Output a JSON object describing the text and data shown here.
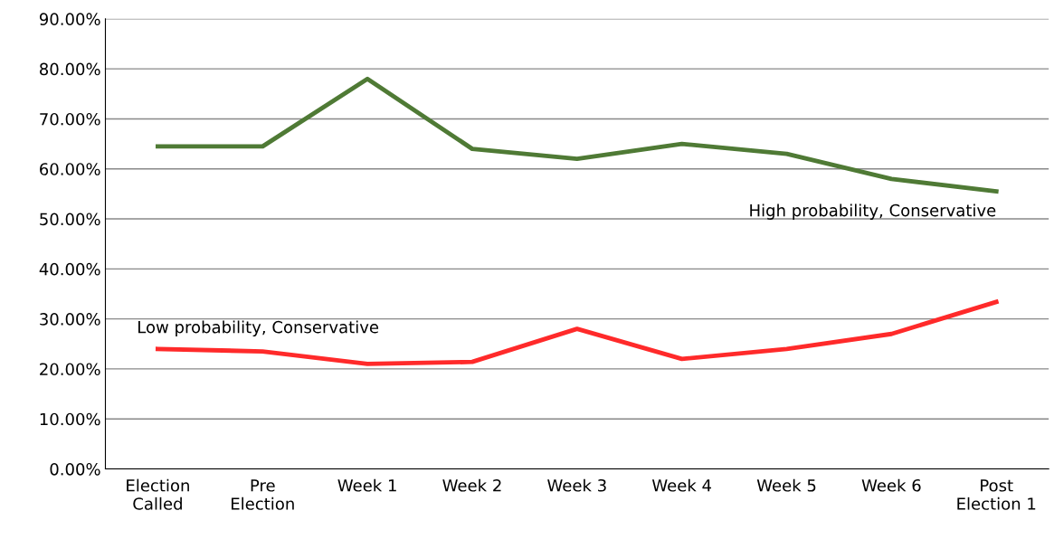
{
  "chart_data": {
    "type": "line",
    "categories": [
      "Election\nCalled",
      "Pre\nElection",
      "Week 1",
      "Week 2",
      "Week 3",
      "Week 4",
      "Week 5",
      "Week 6",
      "Post\nElection 1"
    ],
    "series": [
      {
        "name": "High probability, Conservative",
        "color": "#4f7a35",
        "values": [
          64.5,
          64.5,
          78,
          64,
          62,
          65,
          63,
          58,
          55.5
        ]
      },
      {
        "name": "Low probability, Conservative",
        "color": "#ff2a2a",
        "values": [
          24,
          23.5,
          21,
          21.4,
          28,
          22,
          24,
          27,
          33.4
        ]
      }
    ],
    "ylim": [
      0,
      90
    ],
    "yticks": [
      {
        "value": 0,
        "label": "0.00%"
      },
      {
        "value": 10,
        "label": "10.00%"
      },
      {
        "value": 20,
        "label": "20.00%"
      },
      {
        "value": 30,
        "label": "30.00%"
      },
      {
        "value": 40,
        "label": "40.00%"
      },
      {
        "value": 50,
        "label": "50.00%"
      },
      {
        "value": 60,
        "label": "60.00%"
      },
      {
        "value": 70,
        "label": "70.00%"
      },
      {
        "value": 80,
        "label": "80.00%"
      },
      {
        "value": 90,
        "label": "90.00%"
      }
    ],
    "grid": "y",
    "marker": "none",
    "line_style": "solid",
    "legend": false
  }
}
